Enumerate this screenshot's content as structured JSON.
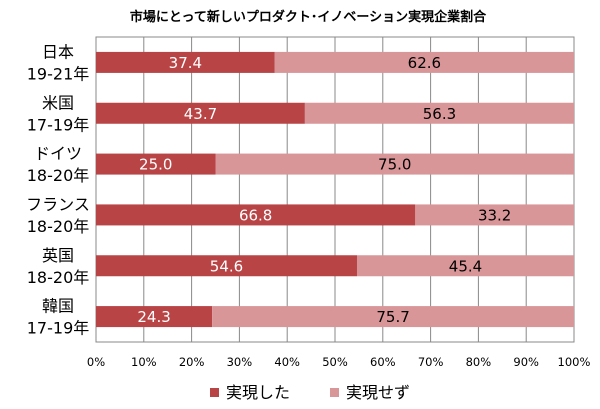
{
  "chart_data": {
    "type": "bar",
    "orientation": "horizontal",
    "stacked": true,
    "title": "市場にとって新しいプロダクト･イノベーション実現企業割合",
    "categories": [
      [
        "日本",
        "19-21年"
      ],
      [
        "米国",
        "17-19年"
      ],
      [
        "ドイツ",
        "18-20年"
      ],
      [
        "フランス",
        "18-20年"
      ],
      [
        "英国",
        "18-20年"
      ],
      [
        "韓国",
        "17-19年"
      ]
    ],
    "series": [
      {
        "name": "実現した",
        "values": [
          37.4,
          43.7,
          25.0,
          66.8,
          54.6,
          24.3
        ],
        "labels": [
          "37.4",
          "43.7",
          "25.0",
          "66.8",
          "54.6",
          "24.3"
        ],
        "color": "#b84446",
        "label_color": "#ffffff"
      },
      {
        "name": "実現せず",
        "values": [
          62.6,
          56.3,
          75.0,
          33.2,
          45.4,
          75.7
        ],
        "labels": [
          "62.6",
          "56.3",
          "75.0",
          "33.2",
          "45.4",
          "75.7"
        ],
        "color": "#d99698",
        "label_color": "#000000"
      }
    ],
    "xlim": [
      0,
      100
    ],
    "xticks": [
      "0%",
      "10%",
      "20%",
      "30%",
      "40%",
      "50%",
      "60%",
      "70%",
      "80%",
      "90%",
      "100%"
    ],
    "grid": "vertical",
    "legend": "bottom"
  }
}
